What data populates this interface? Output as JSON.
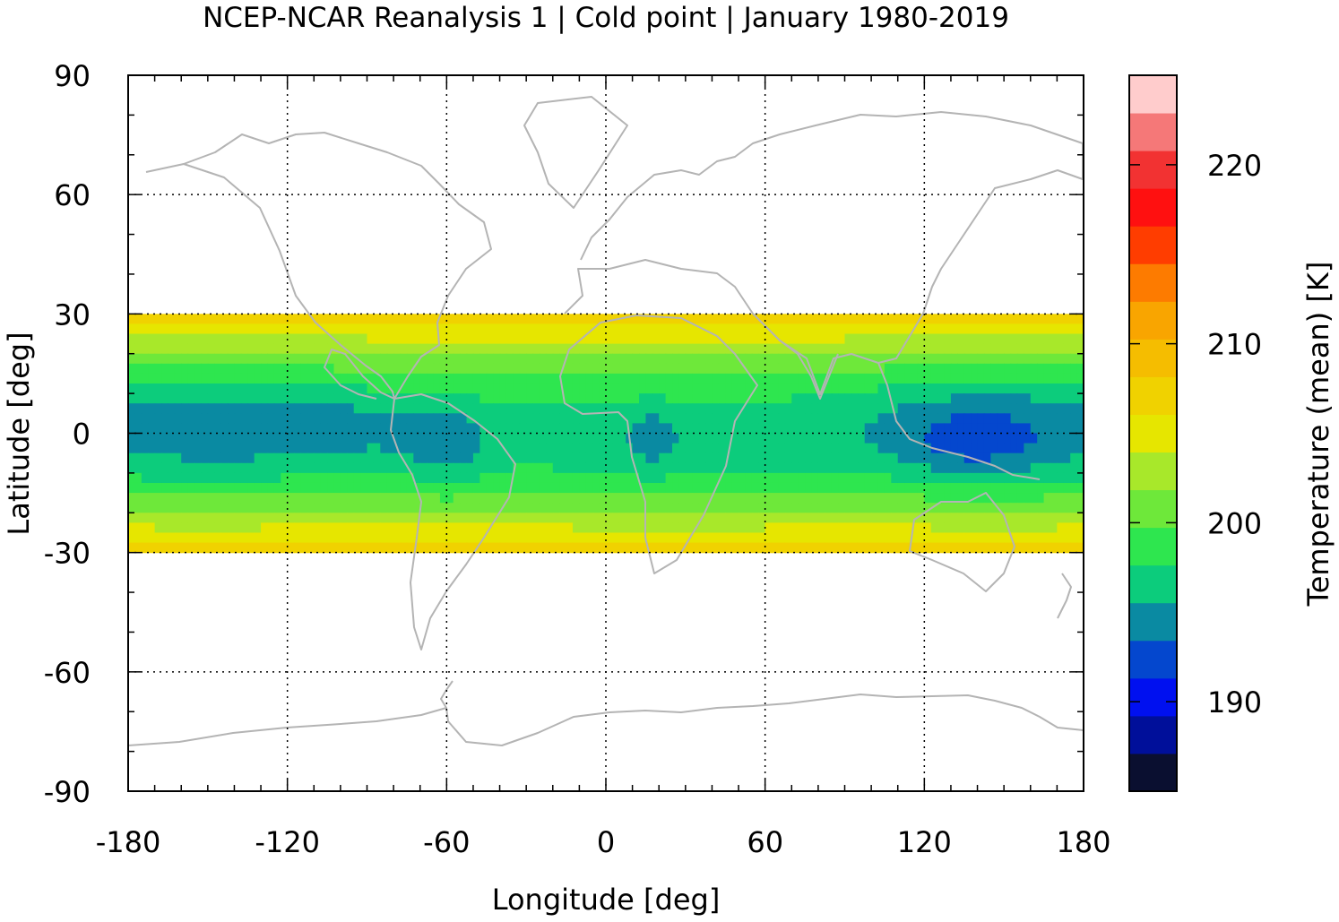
{
  "chart_data": {
    "type": "heatmap",
    "title": "NCEP-NCAR Reanalysis 1 | Cold point | January 1980-2019",
    "xlabel": "Longitude [deg]",
    "ylabel": "Latitude [deg]",
    "colorbar_label": "Temperature (mean) [K]",
    "xlim": [
      -180,
      180
    ],
    "ylim": [
      -90,
      90
    ],
    "x_ticks": [
      "-180",
      "-120",
      "-60",
      "0",
      "60",
      "120",
      "180"
    ],
    "y_ticks": [
      "90",
      "60",
      "30",
      "0",
      "-30",
      "-60",
      "-90"
    ],
    "colorbar_range": [
      185,
      225
    ],
    "colorbar_ticks": [
      "190",
      "200",
      "210",
      "220"
    ],
    "grid": true,
    "data_lat_range": [
      -30,
      30
    ],
    "colormap": [
      "#0a0f30",
      "#000f9a",
      "#0010f0",
      "#0447ce",
      "#0a8aa2",
      "#0ccc7c",
      "#2ee64f",
      "#6ee83a",
      "#a8e82a",
      "#e6e600",
      "#f0d200",
      "#f5bd00",
      "#f9a500",
      "#fd7b00",
      "#ff3d00",
      "#ff1010",
      "#f23232",
      "#f57878",
      "#ffcccc"
    ],
    "overlay": "coastlines",
    "coastline_color": "#b4b4b4"
  }
}
